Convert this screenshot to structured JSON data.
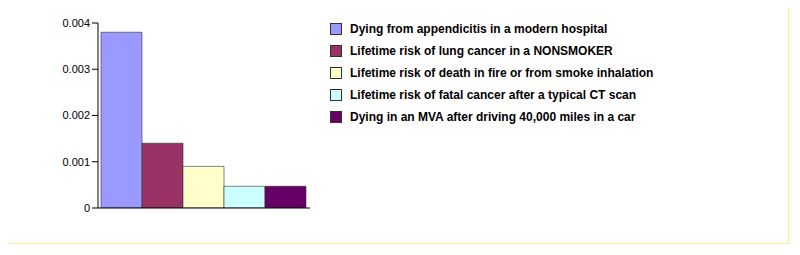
{
  "chart_data": {
    "type": "bar",
    "categories": [
      null
    ],
    "series": [
      {
        "name": "Dying from appendicitis in a modern hospital",
        "color": "#9999ff",
        "values": [
          0.0038
        ]
      },
      {
        "name": "Lifetime risk of lung cancer in a NONSMOKER",
        "color": "#993366",
        "values": [
          0.0014
        ]
      },
      {
        "name": "Lifetime risk of death in fire or from smoke inhalation",
        "color": "#ffffcc",
        "values": [
          0.0009
        ]
      },
      {
        "name": "Lifetime risk of fatal cancer after a typical CT scan",
        "color": "#ccffff",
        "values": [
          0.00047
        ]
      },
      {
        "name": "Dying in an MVA after driving 40,000 miles in a car",
        "color": "#660066",
        "values": [
          0.00047
        ]
      }
    ],
    "ylim": [
      0,
      0.004
    ],
    "yticks": [
      0,
      0.001,
      0.002,
      0.003,
      0.004
    ],
    "legend": "right",
    "tick_labels": "y"
  }
}
